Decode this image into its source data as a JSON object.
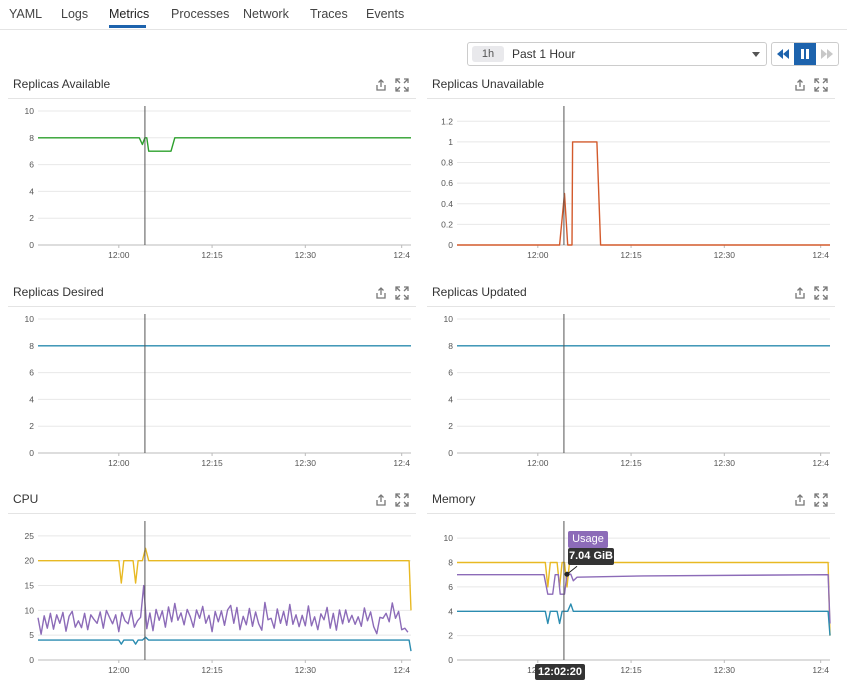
{
  "tabs": [
    {
      "label": "YAML"
    },
    {
      "label": "Logs"
    },
    {
      "label": "Metrics",
      "active": true
    },
    {
      "label": "Processes"
    },
    {
      "label": "Network"
    },
    {
      "label": "Traces"
    },
    {
      "label": "Events"
    }
  ],
  "time_selector": {
    "badge": "1h",
    "range": "Past 1 Hour"
  },
  "playback": {
    "rewind_icon": "rewind-icon",
    "pause_icon": "pause-icon",
    "forward_icon": "fast-forward-icon"
  },
  "panel_icons": {
    "share": "share-icon",
    "expand": "expand-icon"
  },
  "colors": {
    "green": "#2ca02c",
    "red": "#d35a2c",
    "teal": "#2b8cb0",
    "yellow": "#e8b923",
    "purple": "#8c6bb8",
    "accent": "#1d63ad"
  },
  "tooltip": {
    "series": "Usage",
    "value": "7.04 GiB",
    "time": "12:02:20"
  },
  "chart_data": [
    {
      "title": "Replicas Available",
      "type": "line",
      "yticks": [
        "10",
        "8",
        "6",
        "4",
        "2",
        "0"
      ],
      "ylim": [
        0,
        10
      ],
      "xticks": [
        "12:00",
        "12:15",
        "12:30",
        "12:4"
      ],
      "series": [
        {
          "color": "#2ca02c",
          "points": [
            [
              0,
              8
            ],
            [
              16.3,
              8
            ],
            [
              16.8,
              7.5
            ],
            [
              17.2,
              8
            ],
            [
              17.5,
              8
            ],
            [
              17.8,
              7
            ],
            [
              21.4,
              7
            ],
            [
              22,
              8
            ],
            [
              60,
              8
            ]
          ]
        }
      ]
    },
    {
      "title": "Replicas Unavailable",
      "type": "line",
      "yticks": [
        "1.2",
        "1",
        "0.8",
        "0.6",
        "0.4",
        "0.2",
        "0"
      ],
      "ylim": [
        0,
        1.3
      ],
      "xticks": [
        "12:00",
        "12:15",
        "12:30",
        "12:4"
      ],
      "series": [
        {
          "color": "#d35a2c",
          "points": [
            [
              0,
              0
            ],
            [
              16.5,
              0
            ],
            [
              17.3,
              0.5
            ],
            [
              17.8,
              0
            ],
            [
              18.5,
              0
            ],
            [
              18.6,
              1
            ],
            [
              22.5,
              1
            ],
            [
              23.1,
              0
            ],
            [
              60,
              0
            ]
          ]
        }
      ]
    },
    {
      "title": "Replicas Desired",
      "type": "line",
      "yticks": [
        "10",
        "8",
        "6",
        "4",
        "2",
        "0"
      ],
      "ylim": [
        0,
        10
      ],
      "xticks": [
        "12:00",
        "12:15",
        "12:30",
        "12:4"
      ],
      "series": [
        {
          "color": "#2b8cb0",
          "points": [
            [
              0,
              8
            ],
            [
              60,
              8
            ]
          ]
        }
      ]
    },
    {
      "title": "Replicas Updated",
      "type": "line",
      "yticks": [
        "10",
        "8",
        "6",
        "4",
        "2",
        "0"
      ],
      "ylim": [
        0,
        10
      ],
      "xticks": [
        "12:00",
        "12:15",
        "12:30",
        "12:4"
      ],
      "series": [
        {
          "color": "#2b8cb0",
          "points": [
            [
              0,
              8
            ],
            [
              60,
              8
            ]
          ]
        }
      ]
    },
    {
      "title": "CPU",
      "type": "line",
      "yticks": [
        "25",
        "20",
        "15",
        "10",
        "5",
        "0"
      ],
      "ylim": [
        0,
        27
      ],
      "xticks": [
        "12:00",
        "12:15",
        "12:30",
        "12:4"
      ],
      "series": [
        {
          "color": "#e8b923",
          "points": [
            [
              0,
              20
            ],
            [
              13,
              20
            ],
            [
              13.4,
              15.5
            ],
            [
              13.8,
              20
            ],
            [
              15.3,
              20
            ],
            [
              15.7,
              15.5
            ],
            [
              16.1,
              20
            ],
            [
              16.8,
              20
            ],
            [
              17.3,
              22.5
            ],
            [
              17.8,
              20
            ],
            [
              59.7,
              20
            ],
            [
              60,
              10
            ]
          ]
        },
        {
          "color": "#8c6bb8",
          "points": [
            [
              0,
              8.5
            ],
            [
              0.5,
              5.2
            ],
            [
              1,
              8.9
            ],
            [
              1.5,
              6.4
            ],
            [
              2,
              9.4
            ],
            [
              2.5,
              6.2
            ],
            [
              3,
              9.1
            ],
            [
              3.5,
              7.4
            ],
            [
              4,
              9.6
            ],
            [
              4.5,
              5.8
            ],
            [
              5,
              8.8
            ],
            [
              5.5,
              9.8
            ],
            [
              6,
              6.6
            ],
            [
              6.5,
              7.9
            ],
            [
              7,
              6.5
            ],
            [
              7.5,
              9.4
            ],
            [
              8,
              6.1
            ],
            [
              8.5,
              9.1
            ],
            [
              9,
              8.2
            ],
            [
              9.5,
              7.4
            ],
            [
              10,
              9.7
            ],
            [
              10.5,
              6.4
            ],
            [
              11,
              10
            ],
            [
              11.5,
              8.6
            ],
            [
              12,
              7.3
            ],
            [
              12.5,
              9.1
            ],
            [
              13,
              5.7
            ],
            [
              13.5,
              9.6
            ],
            [
              14,
              7.9
            ],
            [
              14.5,
              7.3
            ],
            [
              15,
              10
            ],
            [
              15.5,
              6.6
            ],
            [
              16,
              7.9
            ],
            [
              16.5,
              8.6
            ],
            [
              17,
              15
            ],
            [
              17.5,
              6.3
            ],
            [
              18,
              9.5
            ],
            [
              18.5,
              5.9
            ],
            [
              19,
              10.2
            ],
            [
              19.5,
              8
            ],
            [
              20,
              9.9
            ],
            [
              20.5,
              6.6
            ],
            [
              21,
              10.7
            ],
            [
              21.5,
              7.7
            ],
            [
              22,
              11.4
            ],
            [
              22.5,
              8
            ],
            [
              23,
              9.5
            ],
            [
              23.5,
              7.1
            ],
            [
              24,
              10.2
            ],
            [
              24.5,
              8.7
            ],
            [
              25,
              6.6
            ],
            [
              25.5,
              10.1
            ],
            [
              26,
              8.4
            ],
            [
              26.5,
              10.8
            ],
            [
              27,
              7.4
            ],
            [
              27.5,
              9
            ],
            [
              28,
              5.7
            ],
            [
              28.5,
              9.8
            ],
            [
              29,
              7.7
            ],
            [
              29.5,
              9.9
            ],
            [
              30,
              7
            ],
            [
              30.5,
              10.1
            ],
            [
              31,
              11
            ],
            [
              31.5,
              7.4
            ],
            [
              32,
              10.6
            ],
            [
              32.5,
              6.1
            ],
            [
              33,
              8.8
            ],
            [
              33.5,
              7.1
            ],
            [
              34,
              10.4
            ],
            [
              34.5,
              6.8
            ],
            [
              35,
              9.7
            ],
            [
              35.5,
              7.3
            ],
            [
              36,
              6
            ],
            [
              36.5,
              11.6
            ],
            [
              37,
              8.1
            ],
            [
              37.5,
              8.4
            ],
            [
              38,
              6.4
            ],
            [
              38.5,
              10.3
            ],
            [
              39,
              7.4
            ],
            [
              39.5,
              9.8
            ],
            [
              40,
              7
            ],
            [
              40.5,
              11.2
            ],
            [
              41,
              7.2
            ],
            [
              41.5,
              9.1
            ],
            [
              42,
              6.7
            ],
            [
              42.5,
              9
            ],
            [
              43,
              6.9
            ],
            [
              43.5,
              10.9
            ],
            [
              44,
              6.9
            ],
            [
              44.5,
              8.7
            ],
            [
              45,
              6.1
            ],
            [
              45.5,
              9.3
            ],
            [
              46,
              8.1
            ],
            [
              46.5,
              10.6
            ],
            [
              47,
              6.4
            ],
            [
              47.5,
              9.4
            ],
            [
              48,
              6
            ],
            [
              48.5,
              10.1
            ],
            [
              49,
              7.3
            ],
            [
              49.5,
              10.1
            ],
            [
              50,
              7.6
            ],
            [
              50.5,
              9
            ],
            [
              51,
              7.2
            ],
            [
              51.5,
              8.7
            ],
            [
              52,
              6.8
            ],
            [
              52.5,
              10.5
            ],
            [
              53,
              7.9
            ],
            [
              53.5,
              9.7
            ],
            [
              54,
              6.7
            ],
            [
              54.5,
              5.3
            ],
            [
              55,
              8.6
            ],
            [
              55.5,
              8.4
            ],
            [
              56,
              9.4
            ],
            [
              56.5,
              7.7
            ],
            [
              57,
              11.5
            ],
            [
              57.5,
              8.4
            ],
            [
              58,
              9.8
            ],
            [
              58.5,
              6.1
            ],
            [
              59,
              6.4
            ],
            [
              59.5,
              5.6
            ]
          ]
        },
        {
          "color": "#2b8cb0",
          "points": [
            [
              0,
              4
            ],
            [
              13,
              4
            ],
            [
              13.4,
              3.2
            ],
            [
              13.8,
              4
            ],
            [
              15.3,
              4
            ],
            [
              15.7,
              3.2
            ],
            [
              16.1,
              4
            ],
            [
              16.8,
              4
            ],
            [
              17.3,
              4.6
            ],
            [
              17.8,
              4
            ],
            [
              59.7,
              4
            ],
            [
              60,
              1.8
            ]
          ]
        }
      ]
    },
    {
      "title": "Memory",
      "type": "line",
      "yticks": [
        "10",
        "8",
        "6",
        "4",
        "2",
        "0"
      ],
      "ylim": [
        0,
        11
      ],
      "xticks": [
        "12:00",
        "12:15",
        "12:30",
        "12:4"
      ],
      "series": [
        {
          "color": "#e8b923",
          "points": [
            [
              0,
              8
            ],
            [
              14.2,
              8
            ],
            [
              14.6,
              6
            ],
            [
              15,
              8
            ],
            [
              16.1,
              8
            ],
            [
              16.5,
              6
            ],
            [
              16.9,
              8
            ],
            [
              17.3,
              8
            ],
            [
              17.7,
              6
            ],
            [
              18.1,
              8
            ],
            [
              18.4,
              8
            ],
            [
              18.7,
              9
            ],
            [
              19,
              8
            ],
            [
              59.7,
              8
            ],
            [
              60,
              2
            ]
          ]
        },
        {
          "color": "#8c6bb8",
          "points": [
            [
              0,
              7
            ],
            [
              14,
              7
            ],
            [
              14.6,
              5.4
            ],
            [
              15.4,
              5.4
            ],
            [
              15.8,
              7
            ],
            [
              16.3,
              7
            ],
            [
              16.6,
              5.4
            ],
            [
              17.3,
              5.4
            ],
            [
              17.7,
              7.04
            ],
            [
              18.3,
              7.04
            ],
            [
              18.7,
              6.5
            ],
            [
              19.3,
              6.8
            ],
            [
              30,
              6.9
            ],
            [
              59.7,
              7
            ],
            [
              60,
              3
            ]
          ]
        },
        {
          "color": "#2b8cb0",
          "points": [
            [
              0,
              4
            ],
            [
              14.2,
              4
            ],
            [
              14.6,
              3
            ],
            [
              15,
              4
            ],
            [
              16.1,
              4
            ],
            [
              16.5,
              3
            ],
            [
              16.9,
              4
            ],
            [
              17.8,
              4
            ],
            [
              18.3,
              4.6
            ],
            [
              18.7,
              4
            ],
            [
              59.7,
              4
            ],
            [
              60,
              2
            ]
          ]
        }
      ],
      "marker": [
        17.7,
        7.04
      ]
    }
  ]
}
